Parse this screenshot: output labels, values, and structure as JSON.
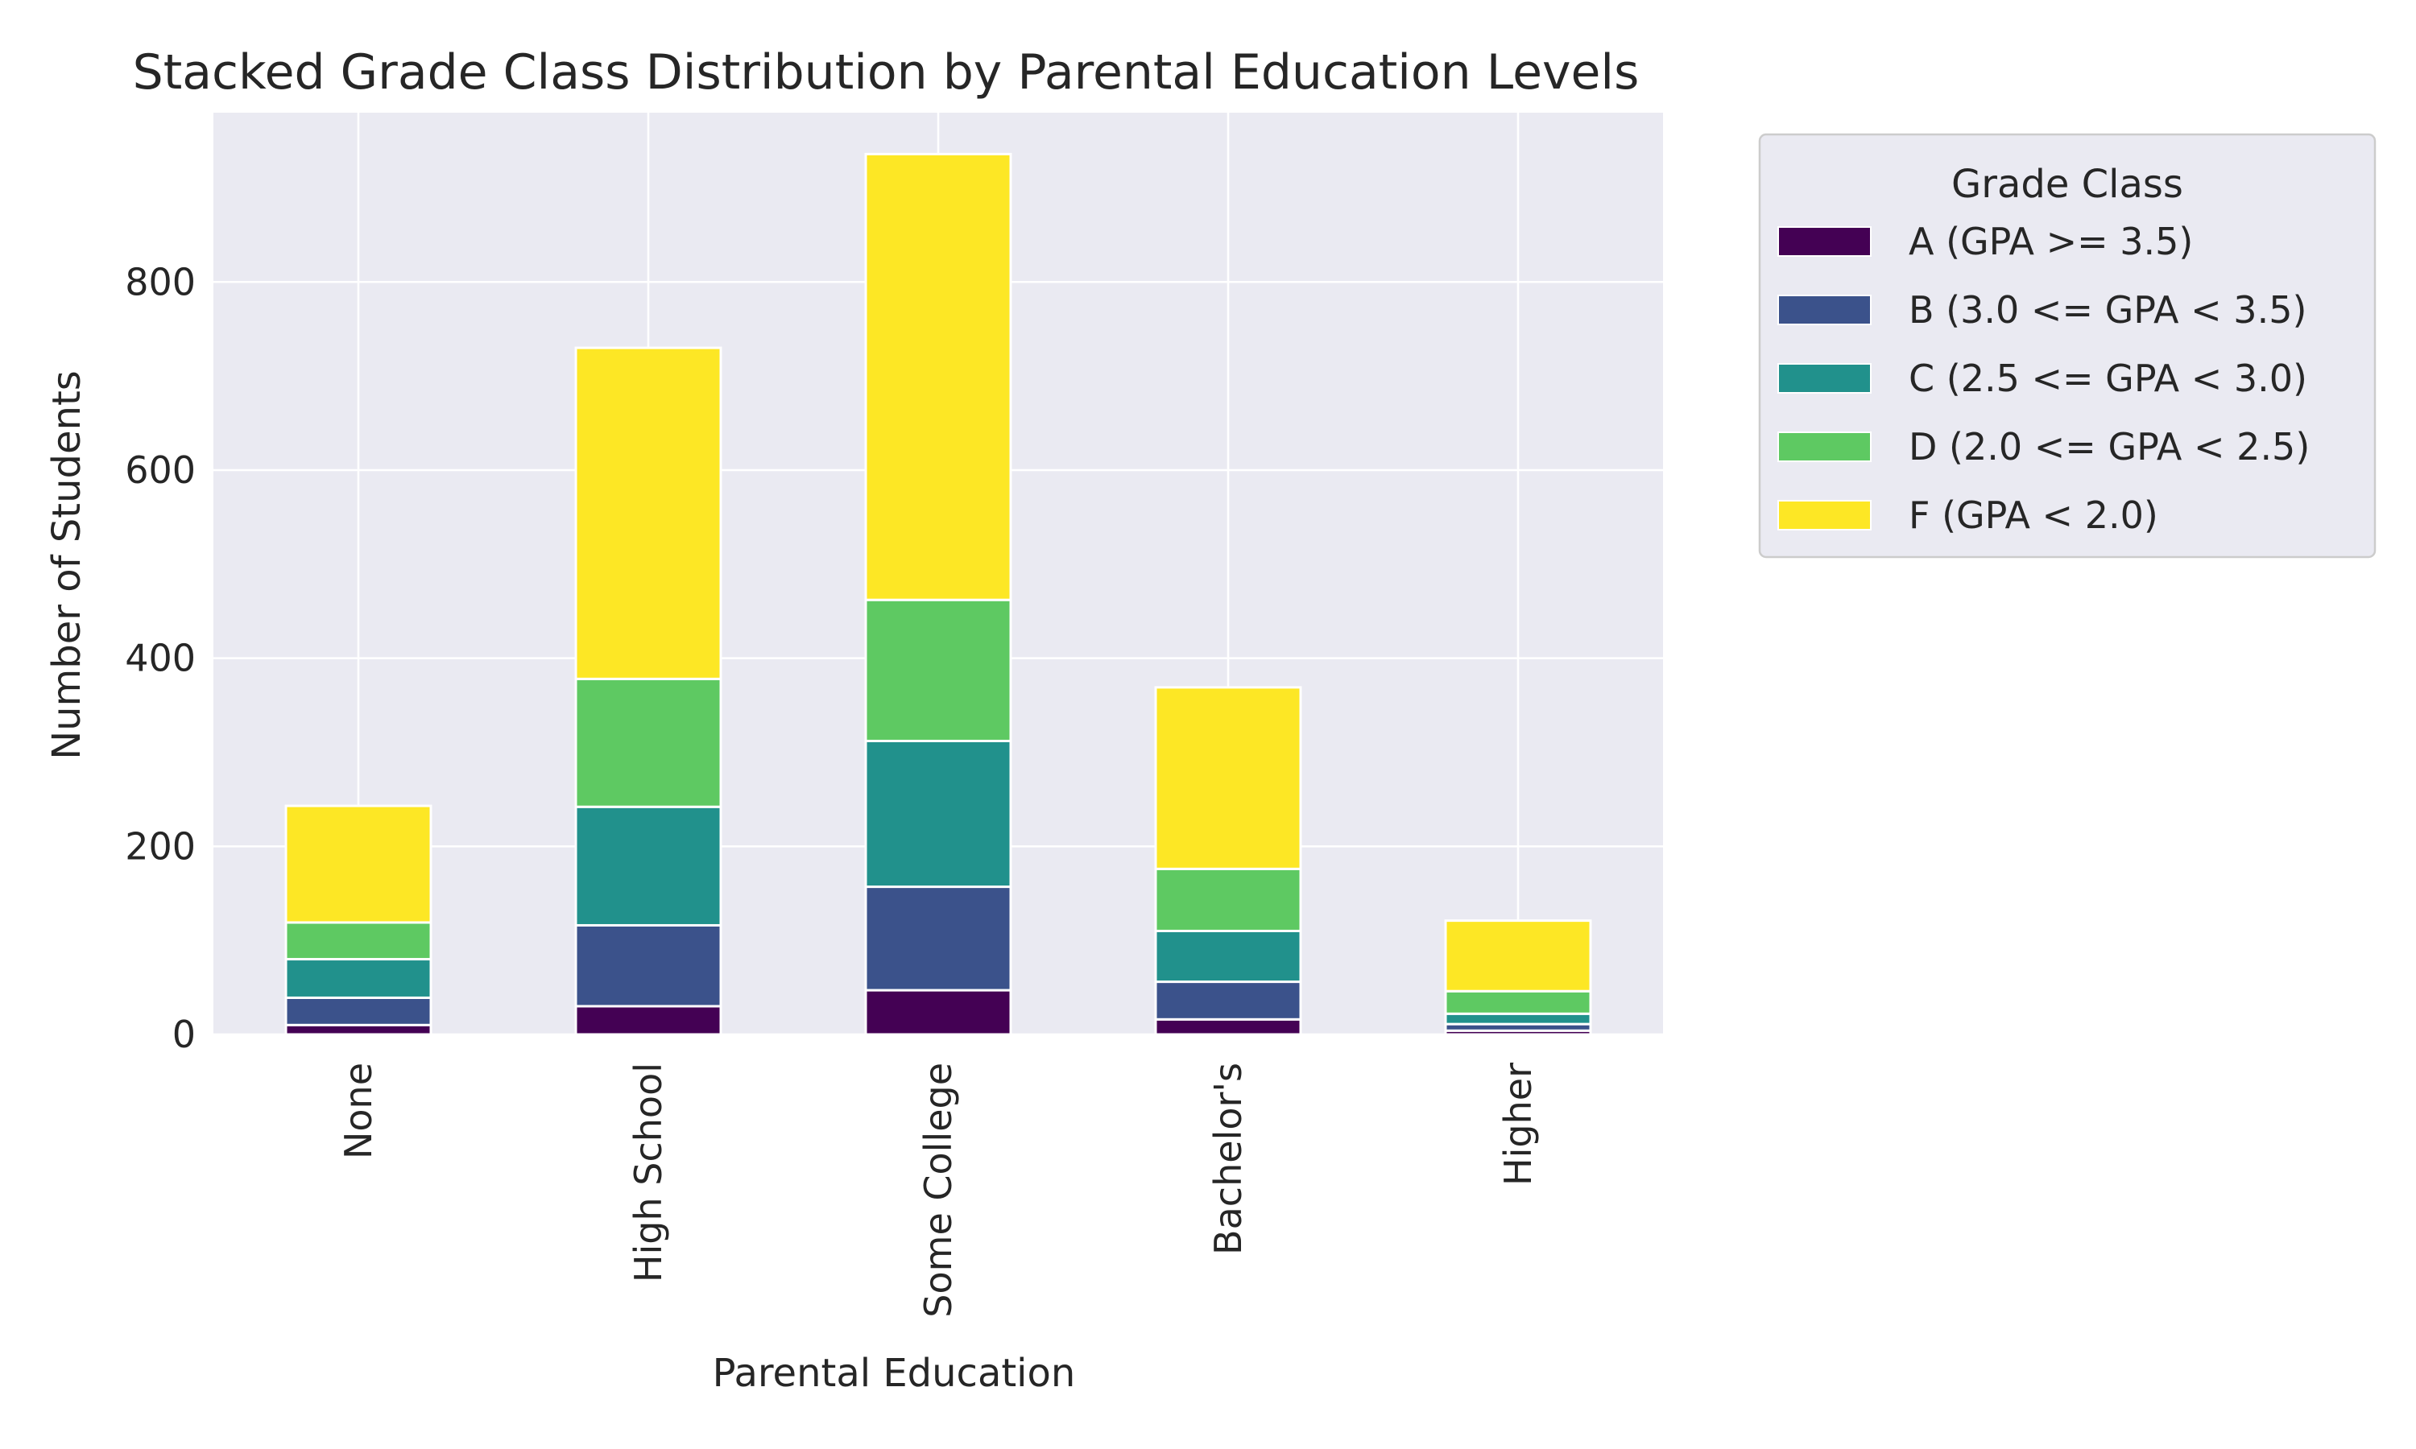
{
  "chart_data": {
    "type": "bar",
    "stacked": true,
    "title": "Stacked Grade Class Distribution by Parental Education Levels",
    "xlabel": "Parental Education",
    "ylabel": "Number of Students",
    "categories": [
      "None",
      "High School",
      "Some College",
      "Bachelor's",
      "Higher"
    ],
    "ylim": [
      0,
      980
    ],
    "yticks": [
      0,
      200,
      400,
      600,
      800
    ],
    "grid": true,
    "legend": {
      "title": "Grade Class",
      "placement": "outside-top-right"
    },
    "series": [
      {
        "name": "A (GPA >= 3.5)",
        "color": "#440154",
        "values": [
          10,
          30,
          47,
          16,
          4
        ]
      },
      {
        "name": "B (3.0 <= GPA < 3.5)",
        "color": "#3b528b",
        "values": [
          29,
          86,
          110,
          40,
          7
        ]
      },
      {
        "name": "C (2.5 <= GPA < 3.0)",
        "color": "#21918c",
        "values": [
          41,
          126,
          155,
          54,
          11
        ]
      },
      {
        "name": "D (2.0 <= GPA < 2.5)",
        "color": "#5ec962",
        "values": [
          39,
          136,
          150,
          66,
          24
        ]
      },
      {
        "name": "F (GPA < 2.0)",
        "color": "#fde725",
        "values": [
          124,
          352,
          474,
          193,
          75
        ]
      }
    ]
  }
}
